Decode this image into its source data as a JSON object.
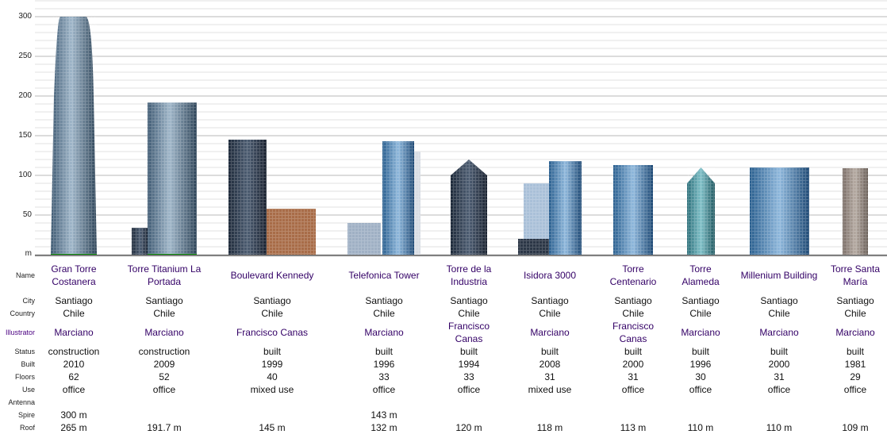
{
  "axis": {
    "unit_label": "m",
    "ticks": [
      50,
      100,
      150,
      200,
      250,
      300
    ]
  },
  "row_labels": {
    "name": "Name",
    "city": "City",
    "country": "Country",
    "illustrator": "Illustrator",
    "status": "Status",
    "built": "Built",
    "floors": "Floors",
    "use": "Use",
    "antenna": "Antenna",
    "spire": "Spire",
    "roof": "Roof"
  },
  "buildings": [
    {
      "name": "Gran Torre Costanera",
      "city": "Santiago",
      "country": "Chile",
      "illustrator": "Marciano",
      "status": "construction",
      "built": "2010",
      "floors": "62",
      "use": "office",
      "antenna": "",
      "spire": "300 m",
      "roof": "265 m"
    },
    {
      "name": "Torre Titanium La Portada",
      "city": "Santiago",
      "country": "Chile",
      "illustrator": "Marciano",
      "status": "construction",
      "built": "2009",
      "floors": "52",
      "use": "office",
      "antenna": "",
      "spire": "",
      "roof": "191.7 m"
    },
    {
      "name": "Boulevard Kennedy",
      "city": "Santiago",
      "country": "Chile",
      "illustrator": "Francisco Canas",
      "status": "built",
      "built": "1999",
      "floors": "40",
      "use": "mixed use",
      "antenna": "",
      "spire": "",
      "roof": "145 m"
    },
    {
      "name": "Telefonica Tower",
      "city": "Santiago",
      "country": "Chile",
      "illustrator": "Marciano",
      "status": "built",
      "built": "1996",
      "floors": "33",
      "use": "office",
      "antenna": "",
      "spire": "143 m",
      "roof": "132 m"
    },
    {
      "name": "Torre de la Industria",
      "city": "Santiago",
      "country": "Chile",
      "illustrator": "Francisco Canas",
      "status": "built",
      "built": "1994",
      "floors": "33",
      "use": "office",
      "antenna": "",
      "spire": "",
      "roof": "120 m"
    },
    {
      "name": "Isidora 3000",
      "city": "Santiago",
      "country": "Chile",
      "illustrator": "Marciano",
      "status": "built",
      "built": "2008",
      "floors": "31",
      "use": "mixed use",
      "antenna": "",
      "spire": "",
      "roof": "118 m"
    },
    {
      "name": "Torre Centenario",
      "city": "Santiago",
      "country": "Chile",
      "illustrator": "Francisco Canas",
      "status": "built",
      "built": "2000",
      "floors": "31",
      "use": "office",
      "antenna": "",
      "spire": "",
      "roof": "113 m"
    },
    {
      "name": "Torre Alameda",
      "city": "Santiago",
      "country": "Chile",
      "illustrator": "Marciano",
      "status": "built",
      "built": "1996",
      "floors": "30",
      "use": "office",
      "antenna": "",
      "spire": "",
      "roof": "110 m"
    },
    {
      "name": "Millenium Building",
      "city": "Santiago",
      "country": "Chile",
      "illustrator": "Marciano",
      "status": "built",
      "built": "2000",
      "floors": "31",
      "use": "office",
      "antenna": "",
      "spire": "",
      "roof": "110 m"
    },
    {
      "name": "Torre Santa María",
      "city": "Santiago",
      "country": "Chile",
      "illustrator": "Marciano",
      "status": "built",
      "built": "1981",
      "floors": "29",
      "use": "office",
      "antenna": "",
      "spire": "",
      "roof": "109 m"
    }
  ],
  "colors": {
    "grid_minor": "#e2e2e2",
    "grid_major": "#b8b8b8",
    "ground": "#808080",
    "construction_base": "#008000"
  }
}
